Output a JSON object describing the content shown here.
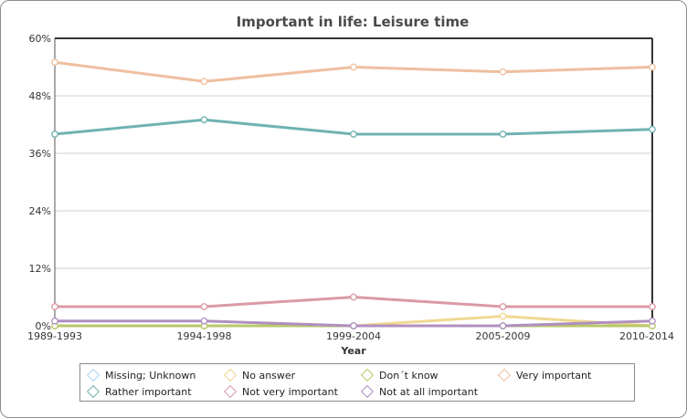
{
  "chart_data": {
    "type": "line",
    "title": "Important in life: Leisure time",
    "xlabel": "Year",
    "ylabel": "",
    "categories": [
      "1989-1993",
      "1994-1998",
      "1999-2004",
      "2005-2009",
      "2010-2014"
    ],
    "ylim": [
      0,
      60
    ],
    "y_ticks": [
      "0%",
      "12%",
      "24%",
      "36%",
      "48%",
      "60%"
    ],
    "y_tick_values": [
      0,
      12,
      24,
      36,
      48,
      60
    ],
    "grid": true,
    "legend_position": "bottom",
    "series": [
      {
        "name": "Missing; Unknown",
        "color": "#a9d4ec",
        "values": [
          0,
          0,
          0,
          0,
          0
        ]
      },
      {
        "name": "No answer",
        "color": "#f0d890",
        "values": [
          0,
          0,
          0,
          2,
          0
        ]
      },
      {
        "name": "Don´t know",
        "color": "#b8c86a",
        "values": [
          0,
          0,
          0,
          0,
          0
        ]
      },
      {
        "name": "Very important",
        "color": "#efbfa0",
        "values": [
          55,
          51,
          54,
          53,
          54
        ]
      },
      {
        "name": "Rather important",
        "color": "#6fb3b1",
        "values": [
          40,
          43,
          40,
          40,
          41
        ]
      },
      {
        "name": "Not very important",
        "color": "#d99aa5",
        "values": [
          4,
          4,
          6,
          4,
          4
        ]
      },
      {
        "name": "Not at all important",
        "color": "#b08fc0",
        "values": [
          1,
          1,
          0,
          0,
          1
        ]
      }
    ]
  }
}
